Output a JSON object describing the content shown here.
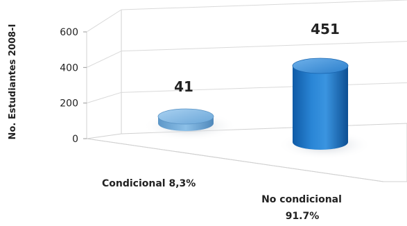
{
  "chart_data": {
    "type": "bar",
    "style": "3d-cylinder",
    "ylabel": "No. Estudiantes 2008-I",
    "ylim": [
      0,
      600
    ],
    "yticks": [
      0,
      200,
      400,
      600
    ],
    "grid": true,
    "categories": [
      {
        "label": "Condicional",
        "percent": "8,3%"
      },
      {
        "label": "No condicional",
        "percent": "91.7%"
      }
    ],
    "values": [
      41,
      451
    ],
    "data_labels": [
      "41",
      "451"
    ],
    "colors": {
      "bar_light": "#7fb3de",
      "bar_dark": "#1e6fbf",
      "grid": "#d9d9d9",
      "axis_text": "#222222"
    }
  }
}
